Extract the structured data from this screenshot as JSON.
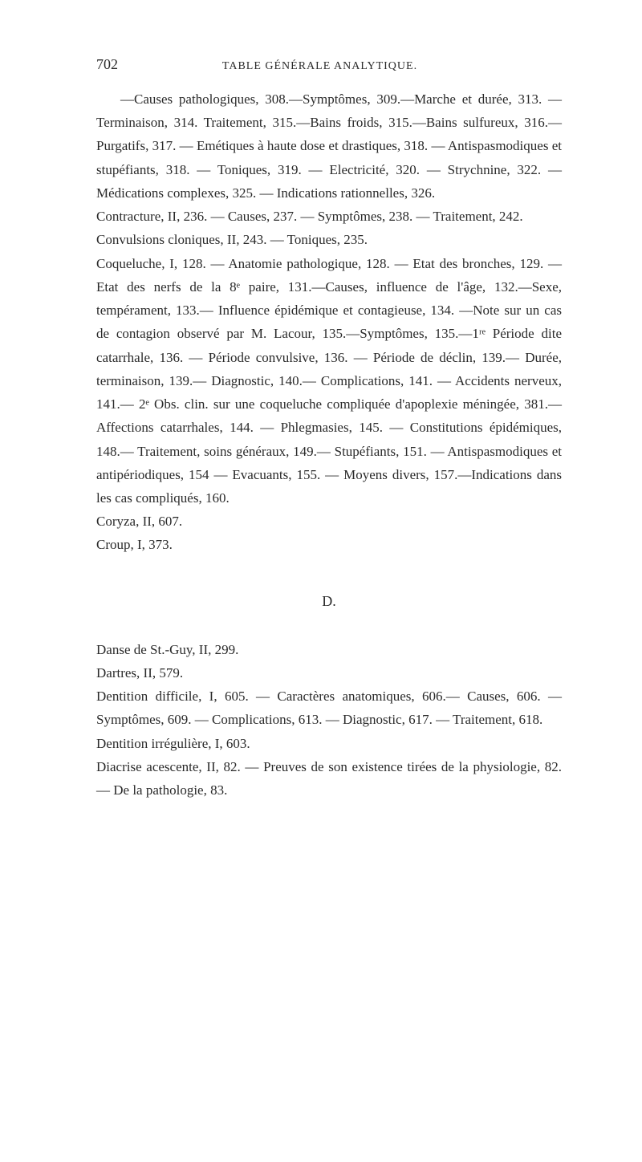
{
  "page_number": "702",
  "header_title": "TABLE GÉNÉRALE ANALYTIQUE.",
  "paragraphs": {
    "p1": "—Causes pathologiques, 308.—Symptômes, 309.—Marche et durée, 313. —Terminaison, 314. Traitement, 315.—Bains froids, 315.—Bains sulfureux, 316.—Purgatifs, 317. — Emétiques à haute dose et drastiques, 318. — Antispasmodiques et stupéfiants, 318. — Toniques, 319. — Electricité, 320. — Strychnine, 322. — Médications complexes, 325. — Indications rationnelles, 326.",
    "p2": "Contracture, II, 236. — Causes, 237. — Symptômes, 238. — Traitement, 242.",
    "p3": "Convulsions cloniques, II, 243. — Toniques, 235.",
    "p4": "Coqueluche, I, 128. — Anatomie pathologique, 128. — Etat des bronches, 129. — Etat des nerfs de la 8ᵉ paire, 131.—Causes, influence de l'âge, 132.—Sexe, tempérament, 133.— Influence épidémique et contagieuse, 134. —Note sur un cas de contagion observé par M. Lacour, 135.—Symptômes, 135.—1ʳᵉ Période dite catarrhale, 136. — Période convulsive, 136. — Période de déclin, 139.— Durée, terminaison, 139.— Diagnostic, 140.— Complications, 141. — Accidents nerveux, 141.— 2ᵉ Obs. clin. sur une coqueluche compliquée d'apoplexie méningée, 381.— Affections catarrhales, 144. — Phlegmasies, 145. — Constitutions épidémiques, 148.— Traitement, soins généraux, 149.— Stupéfiants, 151. — Antispasmodiques et antipériodiques, 154 — Evacuants, 155. — Moyens divers, 157.—Indications dans les cas compliqués, 160.",
    "p5": "Coryza, II, 607.",
    "p6": "Croup, I, 373.",
    "section_d": "D.",
    "p7": "Danse de St.-Guy, II, 299.",
    "p8": "Dartres, II, 579.",
    "p9": "Dentition difficile, I, 605. — Caractères anatomiques, 606.— Causes, 606. — Symptômes, 609. — Complications, 613. — Diagnostic, 617. — Traitement, 618.",
    "p10": "Dentition irrégulière, I, 603.",
    "p11": "Diacrise acescente, II, 82. — Preuves de son existence tirées de la physiologie, 82. — De la pathologie, 83."
  }
}
